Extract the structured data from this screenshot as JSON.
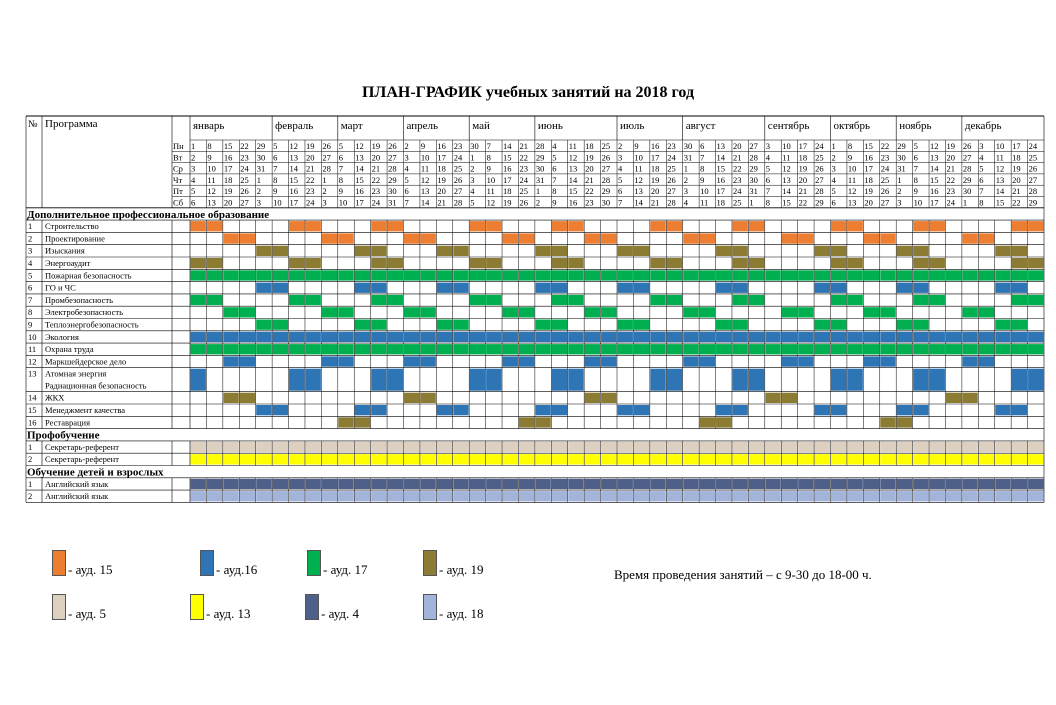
{
  "title": "ПЛАН-ГРАФИК учебных занятий на 2018 год",
  "header": {
    "num": "№",
    "program": "Программа"
  },
  "months": [
    "январь",
    "февраль",
    "март",
    "апрель",
    "май",
    "июнь",
    "июль",
    "август",
    "сентябрь",
    "октябрь",
    "ноябрь",
    "декабрь"
  ],
  "weekdays": [
    "Пн",
    "Вт",
    "Ср",
    "Чт",
    "Пт",
    "Сб"
  ],
  "weeks": [
    {
      "m": 0,
      "d": [
        1,
        2,
        3,
        4,
        5,
        6
      ]
    },
    {
      "m": 0,
      "d": [
        8,
        9,
        10,
        11,
        12,
        13
      ]
    },
    {
      "m": 0,
      "d": [
        15,
        16,
        17,
        18,
        19,
        20
      ]
    },
    {
      "m": 0,
      "d": [
        22,
        23,
        24,
        25,
        26,
        27
      ]
    },
    {
      "m": 0,
      "d": [
        29,
        30,
        31,
        1,
        2,
        3
      ]
    },
    {
      "m": 1,
      "d": [
        5,
        6,
        7,
        8,
        9,
        10
      ]
    },
    {
      "m": 1,
      "d": [
        12,
        13,
        14,
        15,
        16,
        17
      ]
    },
    {
      "m": 1,
      "d": [
        19,
        20,
        21,
        22,
        23,
        24
      ]
    },
    {
      "m": 1,
      "d": [
        26,
        27,
        28,
        1,
        2,
        3
      ]
    },
    {
      "m": 2,
      "d": [
        5,
        6,
        7,
        8,
        9,
        10
      ]
    },
    {
      "m": 2,
      "d": [
        12,
        13,
        14,
        15,
        16,
        17
      ]
    },
    {
      "m": 2,
      "d": [
        19,
        20,
        21,
        22,
        23,
        24
      ]
    },
    {
      "m": 2,
      "d": [
        26,
        27,
        28,
        29,
        30,
        31
      ]
    },
    {
      "m": 3,
      "d": [
        2,
        3,
        4,
        5,
        6,
        7
      ]
    },
    {
      "m": 3,
      "d": [
        9,
        10,
        11,
        12,
        13,
        14
      ]
    },
    {
      "m": 3,
      "d": [
        16,
        17,
        18,
        19,
        20,
        21
      ]
    },
    {
      "m": 3,
      "d": [
        23,
        24,
        25,
        26,
        27,
        28
      ]
    },
    {
      "m": 4,
      "d": [
        30,
        1,
        2,
        3,
        4,
        5
      ]
    },
    {
      "m": 4,
      "d": [
        7,
        8,
        9,
        10,
        11,
        12
      ]
    },
    {
      "m": 4,
      "d": [
        14,
        15,
        16,
        17,
        18,
        19
      ]
    },
    {
      "m": 4,
      "d": [
        21,
        22,
        23,
        24,
        25,
        26
      ]
    },
    {
      "m": 5,
      "d": [
        28,
        29,
        30,
        31,
        1,
        2
      ]
    },
    {
      "m": 5,
      "d": [
        4,
        5,
        6,
        7,
        8,
        9
      ]
    },
    {
      "m": 5,
      "d": [
        11,
        12,
        13,
        14,
        15,
        16
      ]
    },
    {
      "m": 5,
      "d": [
        18,
        19,
        20,
        21,
        22,
        23
      ]
    },
    {
      "m": 5,
      "d": [
        25,
        26,
        27,
        28,
        29,
        30
      ]
    },
    {
      "m": 6,
      "d": [
        2,
        3,
        4,
        5,
        6,
        7
      ]
    },
    {
      "m": 6,
      "d": [
        9,
        10,
        11,
        12,
        13,
        14
      ]
    },
    {
      "m": 6,
      "d": [
        16,
        17,
        18,
        19,
        20,
        21
      ]
    },
    {
      "m": 6,
      "d": [
        23,
        24,
        25,
        26,
        27,
        28
      ]
    },
    {
      "m": 7,
      "d": [
        30,
        31,
        1,
        2,
        3,
        4
      ]
    },
    {
      "m": 7,
      "d": [
        6,
        7,
        8,
        9,
        10,
        11
      ]
    },
    {
      "m": 7,
      "d": [
        13,
        14,
        15,
        16,
        17,
        18
      ]
    },
    {
      "m": 7,
      "d": [
        20,
        21,
        22,
        23,
        24,
        25
      ]
    },
    {
      "m": 7,
      "d": [
        27,
        28,
        29,
        30,
        31,
        1
      ]
    },
    {
      "m": 8,
      "d": [
        3,
        4,
        5,
        6,
        7,
        8
      ]
    },
    {
      "m": 8,
      "d": [
        10,
        11,
        12,
        13,
        14,
        15
      ]
    },
    {
      "m": 8,
      "d": [
        17,
        18,
        19,
        20,
        21,
        22
      ]
    },
    {
      "m": 8,
      "d": [
        24,
        25,
        26,
        27,
        28,
        29
      ]
    },
    {
      "m": 9,
      "d": [
        1,
        2,
        3,
        4,
        5,
        6
      ]
    },
    {
      "m": 9,
      "d": [
        8,
        9,
        10,
        11,
        12,
        13
      ]
    },
    {
      "m": 9,
      "d": [
        15,
        16,
        17,
        18,
        19,
        20
      ]
    },
    {
      "m": 9,
      "d": [
        22,
        23,
        24,
        25,
        26,
        27
      ]
    },
    {
      "m": 10,
      "d": [
        29,
        30,
        31,
        1,
        2,
        3
      ]
    },
    {
      "m": 10,
      "d": [
        5,
        6,
        7,
        8,
        9,
        10
      ]
    },
    {
      "m": 10,
      "d": [
        12,
        13,
        14,
        15,
        16,
        17
      ]
    },
    {
      "m": 10,
      "d": [
        19,
        20,
        21,
        22,
        23,
        24
      ]
    },
    {
      "m": 11,
      "d": [
        26,
        27,
        28,
        29,
        30,
        1
      ]
    },
    {
      "m": 11,
      "d": [
        3,
        4,
        5,
        6,
        7,
        8
      ]
    },
    {
      "m": 11,
      "d": [
        10,
        11,
        12,
        13,
        14,
        15
      ]
    },
    {
      "m": 11,
      "d": [
        17,
        18,
        19,
        20,
        21,
        22
      ]
    },
    {
      "m": 11,
      "d": [
        24,
        25,
        26,
        27,
        28,
        29
      ]
    }
  ],
  "colors": {
    "a15": "#ed7d31",
    "a16": "#2e75b6",
    "a17": "#00b050",
    "a19": "#8c7c33",
    "a5": "#ddd0c0",
    "a13": "#ffff00",
    "a4": "#4e5f8a",
    "a18": "#a3b4db",
    "holiday": "#f8d8cf"
  },
  "sections": [
    {
      "title": "Дополнительное профессиональное образование",
      "rows": [
        {
          "n": "1",
          "label": "Строительство",
          "color": "a15",
          "fill": [
            0,
            1,
            6,
            7,
            11,
            12,
            17,
            18,
            22,
            23,
            28,
            29,
            33,
            34,
            39,
            40,
            44,
            45,
            50,
            51
          ]
        },
        {
          "n": "2",
          "label": "Проектирование",
          "color": "a15",
          "fill": [
            2,
            3,
            8,
            9,
            13,
            14,
            19,
            20,
            24,
            25,
            30,
            31,
            36,
            37,
            41,
            42,
            47,
            48,
            52
          ]
        },
        {
          "n": "3",
          "label": "Изыскания",
          "color": "a19",
          "fill": [
            4,
            5,
            10,
            11,
            15,
            16,
            21,
            22,
            26,
            27,
            32,
            33,
            38,
            39,
            43,
            44,
            49,
            50
          ]
        },
        {
          "n": "4",
          "label": "Энергоаудит",
          "color": "a19",
          "fill": [
            0,
            1,
            6,
            7,
            11,
            12,
            17,
            18,
            22,
            23,
            28,
            29,
            33,
            34,
            39,
            40,
            44,
            45,
            50,
            51
          ]
        },
        {
          "n": "5",
          "label": "Пожарная безопасность",
          "color": "a17",
          "full": true
        },
        {
          "n": "6",
          "label": "ГО и ЧС",
          "color": "a16",
          "fill": [
            4,
            5,
            10,
            11,
            15,
            16,
            21,
            22,
            26,
            27,
            32,
            33,
            38,
            39,
            43,
            44,
            49,
            50
          ]
        },
        {
          "n": "7",
          "label": "Промбезопасность",
          "color": "a17",
          "fill": [
            0,
            1,
            6,
            7,
            11,
            12,
            17,
            18,
            22,
            23,
            28,
            29,
            33,
            34,
            39,
            40,
            44,
            45,
            50,
            51
          ]
        },
        {
          "n": "8",
          "label": "Электробезопасность",
          "color": "a17",
          "fill": [
            2,
            3,
            8,
            9,
            13,
            14,
            19,
            20,
            24,
            25,
            30,
            31,
            36,
            37,
            41,
            42,
            47,
            48,
            52
          ]
        },
        {
          "n": "9",
          "label": "Теплоэнергобезопасность",
          "color": "a17",
          "fill": [
            4,
            5,
            10,
            11,
            15,
            16,
            21,
            22,
            26,
            27,
            32,
            33,
            38,
            39,
            43,
            44,
            49,
            50
          ]
        },
        {
          "n": "10",
          "label": "Экология",
          "color": "a16",
          "full": true
        },
        {
          "n": "11",
          "label": "Охрана труда",
          "color": "a17",
          "full": true
        },
        {
          "n": "12",
          "label": "Маркшейдерское дело",
          "color": "a16",
          "fill": [
            2,
            3,
            8,
            9,
            13,
            14,
            19,
            20,
            24,
            25,
            30,
            31,
            36,
            37,
            41,
            42,
            47,
            48,
            52
          ]
        },
        {
          "n": "13",
          "label": "Атомная энергия",
          "label2": "Радиационная безопасность",
          "color": "a16",
          "tall": true,
          "fill": [
            0,
            6,
            7,
            11,
            12,
            17,
            18,
            22,
            23,
            28,
            29,
            33,
            34,
            39,
            40,
            44,
            45,
            50,
            51
          ]
        },
        {
          "n": "14",
          "label": "ЖКХ",
          "color": "a19",
          "fill": [
            2,
            3,
            13,
            14,
            24,
            25,
            35,
            36,
            46,
            47
          ]
        },
        {
          "n": "15",
          "label": "Менеджмент качества",
          "color": "a16",
          "fill": [
            4,
            5,
            10,
            11,
            15,
            16,
            21,
            22,
            26,
            27,
            32,
            33,
            38,
            39,
            43,
            44,
            49,
            50
          ]
        },
        {
          "n": "16",
          "label": "Реставрация",
          "color": "a19",
          "fill": [
            9,
            10,
            20,
            21,
            31,
            32,
            42,
            43
          ]
        }
      ]
    },
    {
      "title": "Профобучение",
      "rows": [
        {
          "n": "1",
          "label": "Секретарь-референт",
          "color": "a5",
          "full": true
        },
        {
          "n": "2",
          "label": "Секретарь-референт",
          "color": "a13",
          "full": true
        }
      ]
    },
    {
      "title": "Обучение детей и взрослых",
      "rows": [
        {
          "n": "1",
          "label": "Английский язык",
          "color": "a4",
          "full": true
        },
        {
          "n": "2",
          "label": "Английский язык",
          "color": "a18",
          "full": true
        }
      ]
    }
  ],
  "legend": [
    {
      "color": "a15",
      "label": "- ауд. 15"
    },
    {
      "color": "a16",
      "label": "- ауд.16"
    },
    {
      "color": "a17",
      "label": "- ауд. 17"
    },
    {
      "color": "a19",
      "label": "- ауд. 19"
    },
    {
      "color": "a5",
      "label": "- ауд. 5"
    },
    {
      "color": "a13",
      "label": "- ауд. 13"
    },
    {
      "color": "a4",
      "label": "- ауд. 4"
    },
    {
      "color": "a18",
      "label": "- ауд. 18"
    }
  ],
  "time_note": "Время проведения занятий – с 9-30 до 18-00 ч."
}
